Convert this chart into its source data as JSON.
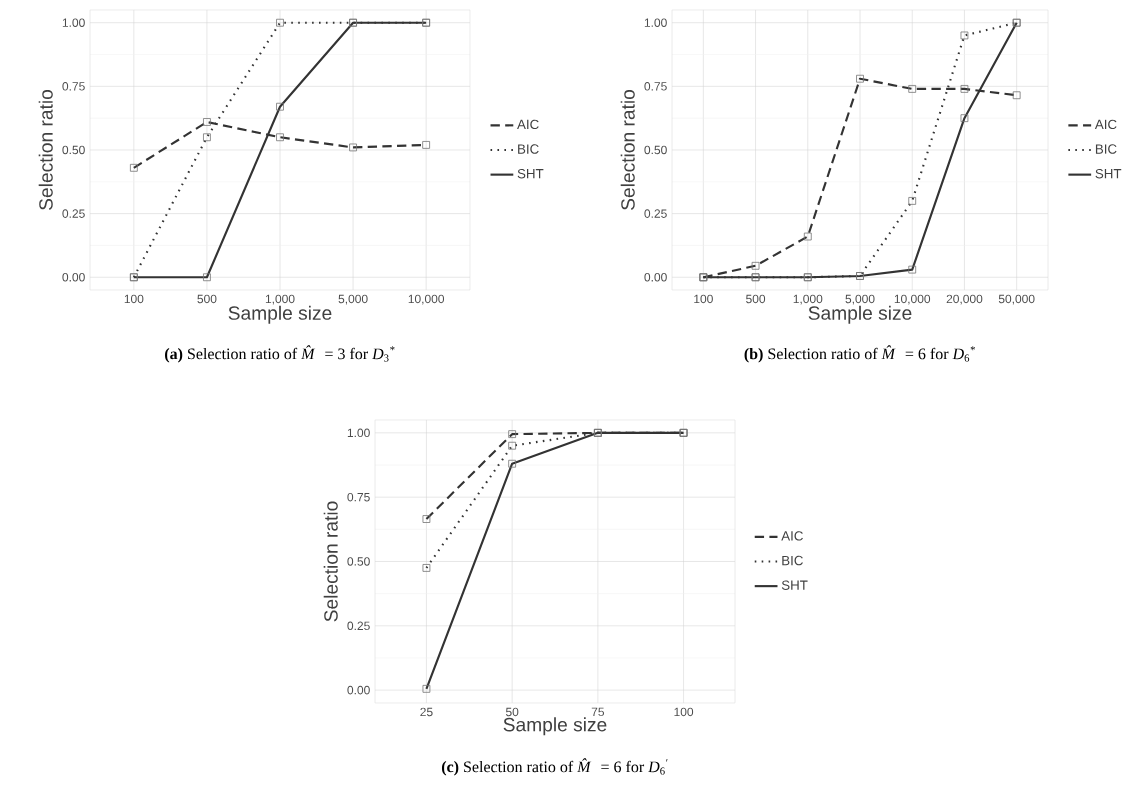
{
  "chart_data": [
    {
      "type": "line",
      "title": "**(a)** Selection ratio of *M̂* = 3 for *D*$_{3}$$^{*}$",
      "xlabel": "Sample size",
      "ylabel": "Selection ratio",
      "categories": [
        "100",
        "500",
        "1,000",
        "5,000",
        "10,000"
      ],
      "ylim": [
        -0.05,
        1.05
      ],
      "yticks": [
        {
          "value": 0,
          "label": "0.00"
        },
        {
          "value": 0.25,
          "label": "0.25"
        },
        {
          "value": 0.5,
          "label": "0.50"
        },
        {
          "value": 0.75,
          "label": "0.75"
        },
        {
          "value": 1,
          "label": "1.00"
        }
      ],
      "grid": true,
      "legend": "right",
      "marker": "square",
      "series": [
        {
          "name": "AIC",
          "color": "#333333",
          "line_style": "dashed",
          "values": [
            0.43,
            0.61,
            0.55,
            0.51,
            0.52
          ]
        },
        {
          "name": "BIC",
          "color": "#333333",
          "line_style": "dotted",
          "values": [
            0.0,
            0.55,
            1.0,
            1.0,
            1.0
          ]
        },
        {
          "name": "SHT",
          "color": "#333333",
          "line_style": "solid",
          "values": [
            0.0,
            0.0,
            0.67,
            1.0,
            1.0
          ]
        }
      ]
    },
    {
      "type": "line",
      "title": "**(b)** Selection ratio of *M̂* = 6 for *D*$_{6}$$^{*}$",
      "xlabel": "Sample size",
      "ylabel": "Selection ratio",
      "categories": [
        "100",
        "500",
        "1,000",
        "5,000",
        "10,000",
        "20,000",
        "50,000"
      ],
      "ylim": [
        -0.05,
        1.05
      ],
      "yticks": [
        {
          "value": 0,
          "label": "0.00"
        },
        {
          "value": 0.25,
          "label": "0.25"
        },
        {
          "value": 0.5,
          "label": "0.50"
        },
        {
          "value": 0.75,
          "label": "0.75"
        },
        {
          "value": 1,
          "label": "1.00"
        }
      ],
      "grid": true,
      "legend": "right",
      "marker": "square",
      "series": [
        {
          "name": "AIC",
          "color": "#333333",
          "line_style": "dashed",
          "values": [
            0.0,
            0.045,
            0.16,
            0.78,
            0.74,
            0.74,
            0.715
          ]
        },
        {
          "name": "BIC",
          "color": "#333333",
          "line_style": "dotted",
          "values": [
            0.0,
            0.0,
            0.0,
            0.005,
            0.3,
            0.95,
            1.0
          ]
        },
        {
          "name": "SHT",
          "color": "#333333",
          "line_style": "solid",
          "values": [
            0.0,
            0.0,
            0.0,
            0.005,
            0.03,
            0.625,
            1.0
          ]
        }
      ]
    },
    {
      "type": "line",
      "title": "**(c)** Selection ratio of *M̂* = 6 for *D*$_{6}$$^{′}$",
      "xlabel": "Sample size",
      "ylabel": "Selection ratio",
      "categories": [
        "25",
        "50",
        "75",
        "100"
      ],
      "ylim": [
        -0.05,
        1.05
      ],
      "yticks": [
        {
          "value": 0,
          "label": "0.00"
        },
        {
          "value": 0.25,
          "label": "0.25"
        },
        {
          "value": 0.5,
          "label": "0.50"
        },
        {
          "value": 0.75,
          "label": "0.75"
        },
        {
          "value": 1,
          "label": "1.00"
        }
      ],
      "grid": true,
      "legend": "right",
      "marker": "square",
      "series": [
        {
          "name": "AIC",
          "color": "#333333",
          "line_style": "dashed",
          "values": [
            0.665,
            0.995,
            1.0,
            1.0
          ]
        },
        {
          "name": "BIC",
          "color": "#333333",
          "line_style": "dotted",
          "values": [
            0.475,
            0.95,
            1.0,
            1.0
          ]
        },
        {
          "name": "SHT",
          "color": "#333333",
          "line_style": "solid",
          "values": [
            0.005,
            0.88,
            1.0,
            1.0
          ]
        }
      ]
    }
  ]
}
